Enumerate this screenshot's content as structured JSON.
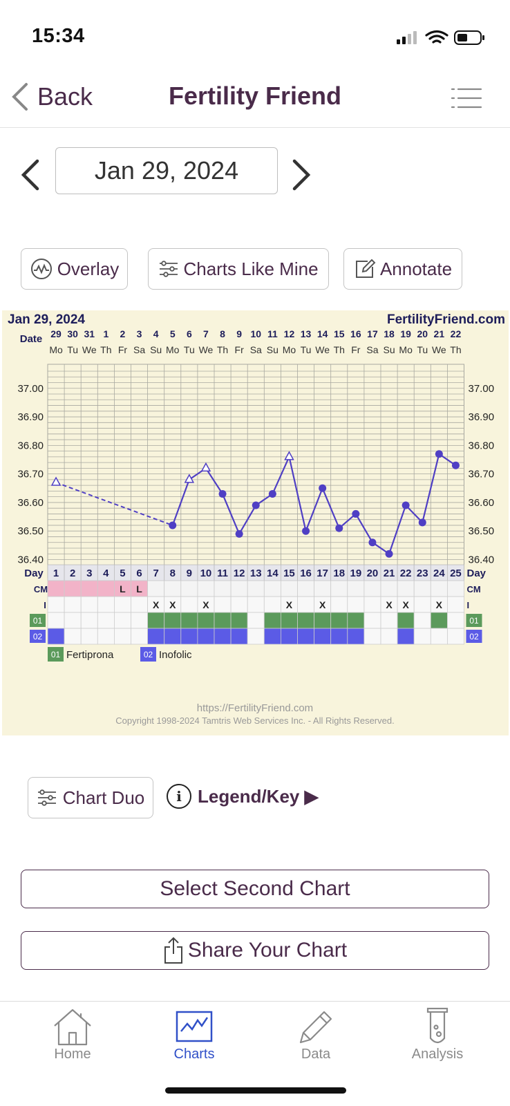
{
  "status_bar": {
    "time": "15:34"
  },
  "nav": {
    "back_label": "Back",
    "title": "Fertility Friend"
  },
  "date_picker": {
    "value": "Jan 29, 2024"
  },
  "toolbar": {
    "overlay": "Overlay",
    "charts_like_mine": "Charts Like Mine",
    "annotate": "Annotate"
  },
  "chart_data": {
    "type": "line",
    "title": "Jan 29, 2024",
    "brand": "FertilityFriend.com",
    "date_label": "Date",
    "day_label": "Day",
    "cm_label": "CM",
    "i_label": "I",
    "date_numbers": [
      "29",
      "30",
      "31",
      "1",
      "2",
      "3",
      "4",
      "5",
      "6",
      "7",
      "8",
      "9",
      "10",
      "11",
      "12",
      "13",
      "14",
      "15",
      "16",
      "17",
      "18",
      "19",
      "20",
      "21",
      "22"
    ],
    "weekdays": [
      "Mo",
      "Tu",
      "We",
      "Th",
      "Fr",
      "Sa",
      "Su",
      "Mo",
      "Tu",
      "We",
      "Th",
      "Fr",
      "Sa",
      "Su",
      "Mo",
      "Tu",
      "We",
      "Th",
      "Fr",
      "Sa",
      "Su",
      "Mo",
      "Tu",
      "We",
      "Th"
    ],
    "cycle_days": [
      "1",
      "2",
      "3",
      "4",
      "5",
      "6",
      "7",
      "8",
      "9",
      "10",
      "11",
      "12",
      "13",
      "14",
      "15",
      "16",
      "17",
      "18",
      "19",
      "20",
      "21",
      "22",
      "23",
      "24",
      "25"
    ],
    "ylim": [
      36.36,
      37.06
    ],
    "y_ticks": [
      "37.00",
      "36.90",
      "36.80",
      "36.70",
      "36.60",
      "36.50",
      "36.40"
    ],
    "temperatures": [
      36.67,
      null,
      null,
      null,
      null,
      null,
      null,
      36.52,
      36.68,
      36.72,
      36.63,
      36.49,
      36.59,
      36.63,
      36.76,
      36.5,
      36.65,
      36.51,
      36.56,
      36.46,
      36.42,
      36.59,
      36.53,
      36.77,
      36.73
    ],
    "open_marker_days": [
      1,
      9,
      10,
      15
    ],
    "dashed_segment_days": [
      1,
      8
    ],
    "cm": [
      "",
      "",
      "",
      "",
      "L",
      "L",
      "",
      "",
      "",
      "",
      "",
      "",
      "",
      "",
      "",
      "",
      "",
      "",
      "",
      "",
      "",
      "",
      "",
      "",
      ""
    ],
    "cm_pink_days": [
      1,
      2,
      3,
      4,
      5,
      6
    ],
    "intercourse": [
      "",
      "",
      "",
      "",
      "",
      "",
      "X",
      "X",
      "",
      "X",
      "",
      "",
      "",
      "",
      "X",
      "",
      "X",
      "",
      "",
      "",
      "X",
      "X",
      "",
      "X",
      ""
    ],
    "med_rows": [
      {
        "code": "01",
        "name": "Fertiprona",
        "color": "#5b9a5b",
        "days": [
          7,
          8,
          9,
          10,
          11,
          12,
          14,
          15,
          16,
          17,
          18,
          19,
          22,
          24
        ]
      },
      {
        "code": "02",
        "name": "Inofolic",
        "color": "#5b5be6",
        "days": [
          1,
          7,
          8,
          9,
          10,
          11,
          12,
          14,
          15,
          16,
          17,
          18,
          19,
          22
        ]
      }
    ],
    "footer_url": "https://FertilityFriend.com",
    "footer_copyright": "Copyright 1998-2024 Tamtris Web Services Inc. - All Rights Reserved.",
    "colors": {
      "line": "#4f3fc4",
      "grid": "#a8a8a0",
      "header_text": "#1d1d5a",
      "plot_bg": "#f8f4dc"
    }
  },
  "chart_tools": {
    "chart_duo": "Chart Duo",
    "legend_key": "Legend/Key ▶"
  },
  "actions": {
    "select_second": "Select Second Chart",
    "share": "Share Your Chart"
  },
  "tabbar": {
    "items": [
      {
        "label": "Home",
        "icon": "house-icon"
      },
      {
        "label": "Charts",
        "icon": "chart-icon"
      },
      {
        "label": "Data",
        "icon": "pencil-icon"
      },
      {
        "label": "Analysis",
        "icon": "test-tube-icon"
      }
    ]
  }
}
